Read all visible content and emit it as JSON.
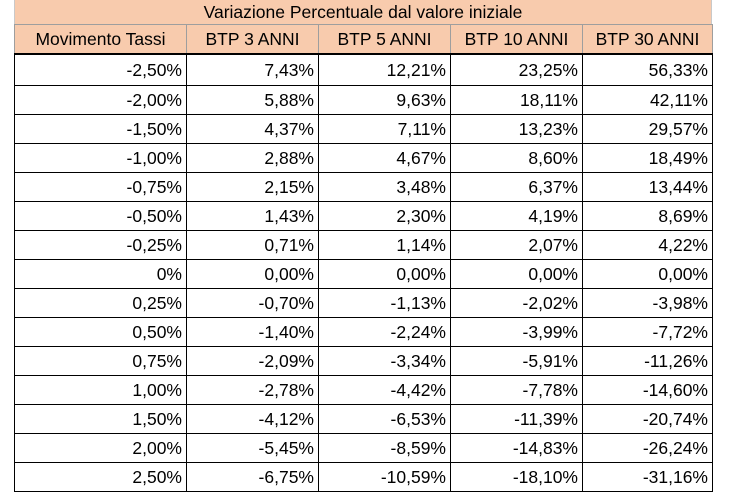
{
  "title": "Variazione Percentuale dal valore iniziale",
  "headers": [
    "Movimento Tassi",
    "BTP 3 ANNI",
    "BTP 5 ANNI",
    "BTP 10 ANNI",
    "BTP 30 ANNI"
  ],
  "rows": [
    [
      "-2,50%",
      "7,43%",
      "12,21%",
      "23,25%",
      "56,33%"
    ],
    [
      "-2,00%",
      "5,88%",
      "9,63%",
      "18,11%",
      "42,11%"
    ],
    [
      "-1,50%",
      "4,37%",
      "7,11%",
      "13,23%",
      "29,57%"
    ],
    [
      "-1,00%",
      "2,88%",
      "4,67%",
      "8,60%",
      "18,49%"
    ],
    [
      "-0,75%",
      "2,15%",
      "3,48%",
      "6,37%",
      "13,44%"
    ],
    [
      "-0,50%",
      "1,43%",
      "2,30%",
      "4,19%",
      "8,69%"
    ],
    [
      "-0,25%",
      "0,71%",
      "1,14%",
      "2,07%",
      "4,22%"
    ],
    [
      "0%",
      "0,00%",
      "0,00%",
      "0,00%",
      "0,00%"
    ],
    [
      "0,25%",
      "-0,70%",
      "-1,13%",
      "-2,02%",
      "-3,98%"
    ],
    [
      "0,50%",
      "-1,40%",
      "-2,24%",
      "-3,99%",
      "-7,72%"
    ],
    [
      "0,75%",
      "-2,09%",
      "-3,34%",
      "-5,91%",
      "-11,26%"
    ],
    [
      "1,00%",
      "-2,78%",
      "-4,42%",
      "-7,78%",
      "-14,60%"
    ],
    [
      "1,50%",
      "-4,12%",
      "-6,53%",
      "-11,39%",
      "-20,74%"
    ],
    [
      "2,00%",
      "-5,45%",
      "-8,59%",
      "-14,83%",
      "-26,24%"
    ],
    [
      "2,50%",
      "-6,75%",
      "-10,59%",
      "-18,10%",
      "-31,16%"
    ]
  ],
  "colors": {
    "header_fill": "#f8cbad",
    "grid": "#000000"
  }
}
